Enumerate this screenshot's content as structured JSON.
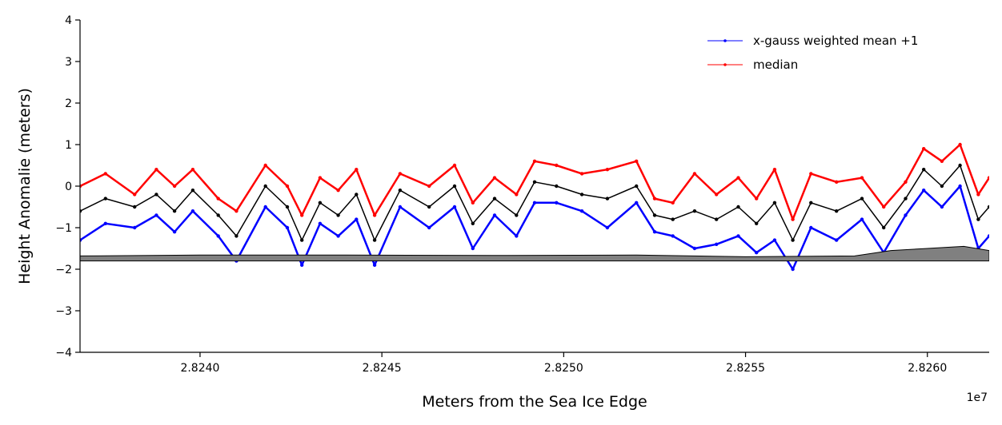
{
  "chart_data": {
    "type": "line",
    "title": "",
    "xlabel": "Meters from the Sea Ice Edge",
    "ylabel": "Height Anomalie (meters)",
    "x_offset_label": "1e7",
    "xlim": [
      2.82367,
      2.82617
    ],
    "ylim": [
      -4,
      4
    ],
    "x_ticks": [
      2.824,
      2.8245,
      2.825,
      2.8255,
      2.826
    ],
    "x_tick_labels": [
      "2.8240",
      "2.8245",
      "2.8250",
      "2.8255",
      "2.8260"
    ],
    "y_ticks": [
      -4,
      -3,
      -2,
      -1,
      0,
      1,
      2,
      3,
      4
    ],
    "y_tick_labels": [
      "−4",
      "−3",
      "−2",
      "−1",
      "0",
      "1",
      "2",
      "3",
      "4"
    ],
    "grid": false,
    "legend_position": "top-right",
    "series": [
      {
        "name": "x-gauss weighted mean +1",
        "color": "#0000ff",
        "x": [
          2.82367,
          2.82374,
          2.82382,
          2.82388,
          2.82393,
          2.82398,
          2.82405,
          2.8241,
          2.82418,
          2.82424,
          2.82428,
          2.82433,
          2.82438,
          2.82443,
          2.82448,
          2.82455,
          2.82463,
          2.8247,
          2.82475,
          2.82481,
          2.82487,
          2.82492,
          2.82498,
          2.82505,
          2.82512,
          2.8252,
          2.82525,
          2.8253,
          2.82536,
          2.82542,
          2.82548,
          2.82553,
          2.82558,
          2.82563,
          2.82568,
          2.82575,
          2.82582,
          2.82588,
          2.82594,
          2.82599,
          2.82604,
          2.82609,
          2.82614,
          2.82617
        ],
        "y": [
          -1.3,
          -0.9,
          -1.0,
          -0.7,
          -1.1,
          -0.6,
          -1.2,
          -1.8,
          -0.5,
          -1.0,
          -1.9,
          -0.9,
          -1.2,
          -0.8,
          -1.9,
          -0.5,
          -1.0,
          -0.5,
          -1.5,
          -0.7,
          -1.2,
          -0.4,
          -0.4,
          -0.6,
          -1.0,
          -0.4,
          -1.1,
          -1.2,
          -1.5,
          -1.4,
          -1.2,
          -1.6,
          -1.3,
          -2.0,
          -1.0,
          -1.3,
          -0.8,
          -1.6,
          -0.7,
          -0.1,
          -0.5,
          0.0,
          -1.5,
          -1.2
        ]
      },
      {
        "name": "median",
        "color": "#ff0000",
        "x": [
          2.82367,
          2.82374,
          2.82382,
          2.82388,
          2.82393,
          2.82398,
          2.82405,
          2.8241,
          2.82418,
          2.82424,
          2.82428,
          2.82433,
          2.82438,
          2.82443,
          2.82448,
          2.82455,
          2.82463,
          2.8247,
          2.82475,
          2.82481,
          2.82487,
          2.82492,
          2.82498,
          2.82505,
          2.82512,
          2.8252,
          2.82525,
          2.8253,
          2.82536,
          2.82542,
          2.82548,
          2.82553,
          2.82558,
          2.82563,
          2.82568,
          2.82575,
          2.82582,
          2.82588,
          2.82594,
          2.82599,
          2.82604,
          2.82609,
          2.82614,
          2.82617
        ],
        "y": [
          0.0,
          0.3,
          -0.2,
          0.4,
          0.0,
          0.4,
          -0.3,
          -0.6,
          0.5,
          0.0,
          -0.7,
          0.2,
          -0.1,
          0.4,
          -0.7,
          0.3,
          0.0,
          0.5,
          -0.4,
          0.2,
          -0.2,
          0.6,
          0.5,
          0.3,
          0.4,
          0.6,
          -0.3,
          -0.4,
          0.3,
          -0.2,
          0.2,
          -0.3,
          0.4,
          -0.8,
          0.3,
          0.1,
          0.2,
          -0.5,
          0.1,
          0.9,
          0.6,
          1.0,
          -0.2,
          0.2
        ]
      },
      {
        "name": "",
        "color": "#000000",
        "x": [
          2.82367,
          2.82374,
          2.82382,
          2.82388,
          2.82393,
          2.82398,
          2.82405,
          2.8241,
          2.82418,
          2.82424,
          2.82428,
          2.82433,
          2.82438,
          2.82443,
          2.82448,
          2.82455,
          2.82463,
          2.8247,
          2.82475,
          2.82481,
          2.82487,
          2.82492,
          2.82498,
          2.82505,
          2.82512,
          2.8252,
          2.82525,
          2.8253,
          2.82536,
          2.82542,
          2.82548,
          2.82553,
          2.82558,
          2.82563,
          2.82568,
          2.82575,
          2.82582,
          2.82588,
          2.82594,
          2.82599,
          2.82604,
          2.82609,
          2.82614,
          2.82617
        ],
        "y": [
          -0.6,
          -0.3,
          -0.5,
          -0.2,
          -0.6,
          -0.1,
          -0.7,
          -1.2,
          0.0,
          -0.5,
          -1.3,
          -0.4,
          -0.7,
          -0.2,
          -1.3,
          -0.1,
          -0.5,
          0.0,
          -0.9,
          -0.3,
          -0.7,
          0.1,
          0.0,
          -0.2,
          -0.3,
          0.0,
          -0.7,
          -0.8,
          -0.6,
          -0.8,
          -0.5,
          -0.9,
          -0.4,
          -1.3,
          -0.4,
          -0.6,
          -0.3,
          -1.0,
          -0.3,
          0.4,
          0.0,
          0.5,
          -0.8,
          -0.5
        ]
      },
      {
        "name": "",
        "color": "#000000",
        "fill": "#808080",
        "baseline": -1.8,
        "x": [
          2.82367,
          2.824,
          2.8244,
          2.8248,
          2.8252,
          2.8255,
          2.8258,
          2.8259,
          2.826,
          2.8261,
          2.82617
        ],
        "y": [
          -1.68,
          -1.66,
          -1.66,
          -1.67,
          -1.66,
          -1.7,
          -1.68,
          -1.55,
          -1.5,
          -1.45,
          -1.55
        ]
      }
    ]
  }
}
